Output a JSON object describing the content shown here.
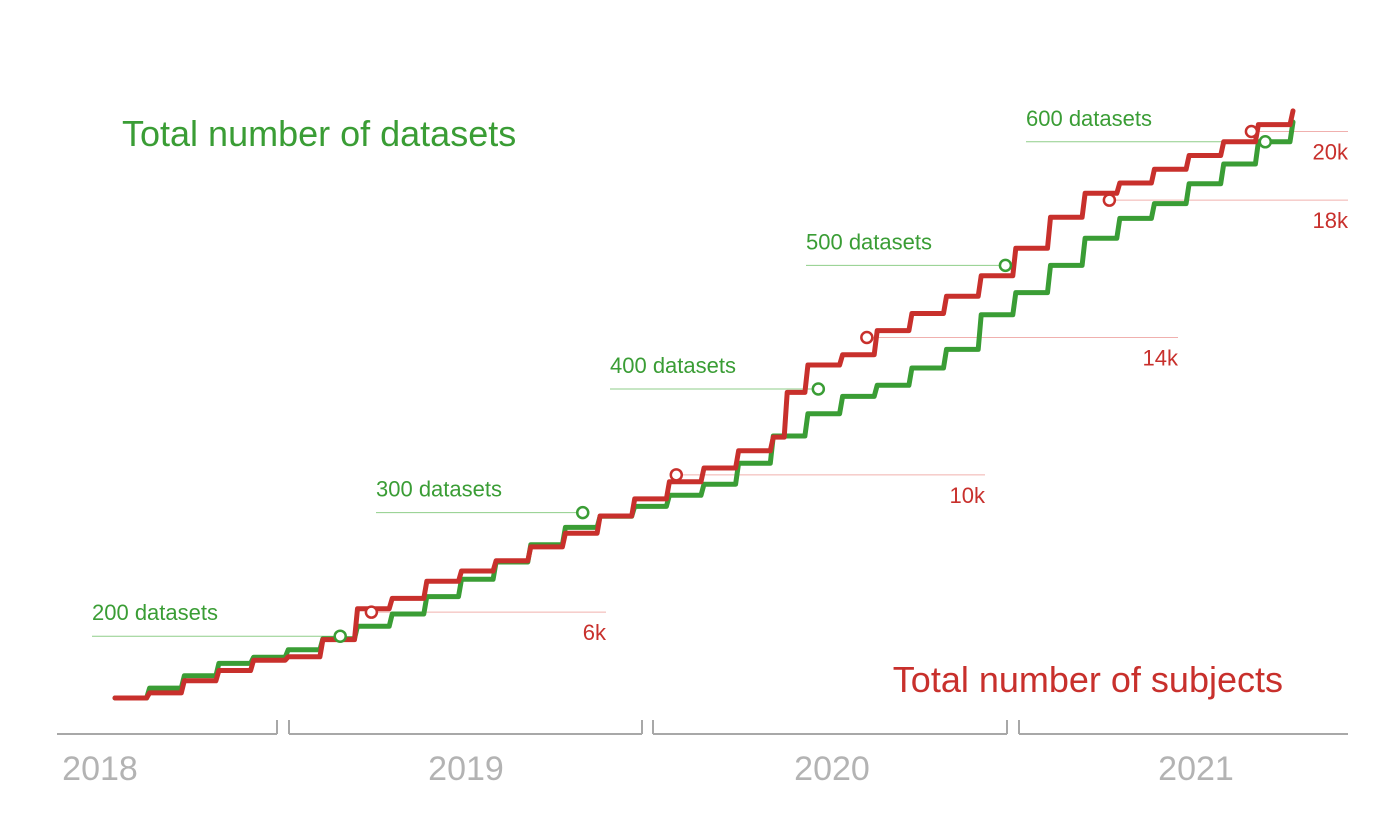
{
  "chart_data": {
    "type": "line",
    "title": "",
    "x_unit": "year",
    "xlim": [
      2018.0,
      2021.5
    ],
    "year_labels": [
      "2018",
      "2019",
      "2020",
      "2021"
    ],
    "series": [
      {
        "name": "Total number of datasets",
        "color": "#3a9d35",
        "ylim": [
          150,
          650
        ],
        "x": [
          2018.0,
          2018.1,
          2018.2,
          2018.3,
          2018.4,
          2018.5,
          2018.6,
          2018.7,
          2018.8,
          2018.9,
          2019.0,
          2019.1,
          2019.2,
          2019.3,
          2019.4,
          2019.5,
          2019.6,
          2019.7,
          2019.8,
          2019.9,
          2020.0,
          2020.1,
          2020.2,
          2020.3,
          2020.4,
          2020.5,
          2020.6,
          2020.7,
          2020.8,
          2020.9,
          2021.0,
          2021.1,
          2021.2,
          2021.3,
          2021.4
        ],
        "y": [
          150,
          158,
          168,
          178,
          183,
          189,
          198,
          208,
          218,
          232,
          246,
          260,
          274,
          288,
          297,
          305,
          314,
          323,
          340,
          362,
          380,
          394,
          403,
          417,
          432,
          460,
          478,
          500,
          522,
          538,
          550,
          566,
          582,
          600,
          616
        ],
        "markers": [
          {
            "x": 2018.65,
            "y": 200,
            "label": "200 datasets"
          },
          {
            "x": 2019.35,
            "y": 300,
            "label": "300 datasets"
          },
          {
            "x": 2020.03,
            "y": 400,
            "label": "400 datasets"
          },
          {
            "x": 2020.57,
            "y": 500,
            "label": "500 datasets"
          },
          {
            "x": 2021.32,
            "y": 600,
            "label": "600 datasets"
          }
        ]
      },
      {
        "name": "Total number of subjects",
        "color": "#c8302c",
        "ylim": [
          3500,
          21500
        ],
        "x": [
          2018.0,
          2018.1,
          2018.2,
          2018.3,
          2018.4,
          2018.5,
          2018.6,
          2018.7,
          2018.8,
          2018.9,
          2019.0,
          2019.1,
          2019.2,
          2019.3,
          2019.4,
          2019.5,
          2019.6,
          2019.7,
          2019.8,
          2019.9,
          2019.94,
          2020.0,
          2020.1,
          2020.2,
          2020.3,
          2020.4,
          2020.5,
          2020.6,
          2020.7,
          2020.8,
          2020.9,
          2021.0,
          2021.1,
          2021.2,
          2021.3,
          2021.4
        ],
        "y": [
          3500,
          3650,
          4000,
          4300,
          4600,
          4700,
          5200,
          6100,
          6400,
          6900,
          7200,
          7500,
          7900,
          8300,
          8800,
          9300,
          9800,
          10200,
          10700,
          11100,
          12400,
          13200,
          13500,
          14200,
          14700,
          15200,
          15800,
          16600,
          17500,
          18200,
          18500,
          18900,
          19300,
          19700,
          20200,
          20600
        ],
        "markers": [
          {
            "x": 2018.74,
            "y": 6000,
            "label": "6k"
          },
          {
            "x": 2019.62,
            "y": 10000,
            "label": "10k"
          },
          {
            "x": 2020.17,
            "y": 14000,
            "label": "14k"
          },
          {
            "x": 2020.87,
            "y": 18000,
            "label": "18k"
          },
          {
            "x": 2021.28,
            "y": 20000,
            "label": "20k"
          }
        ]
      }
    ]
  }
}
